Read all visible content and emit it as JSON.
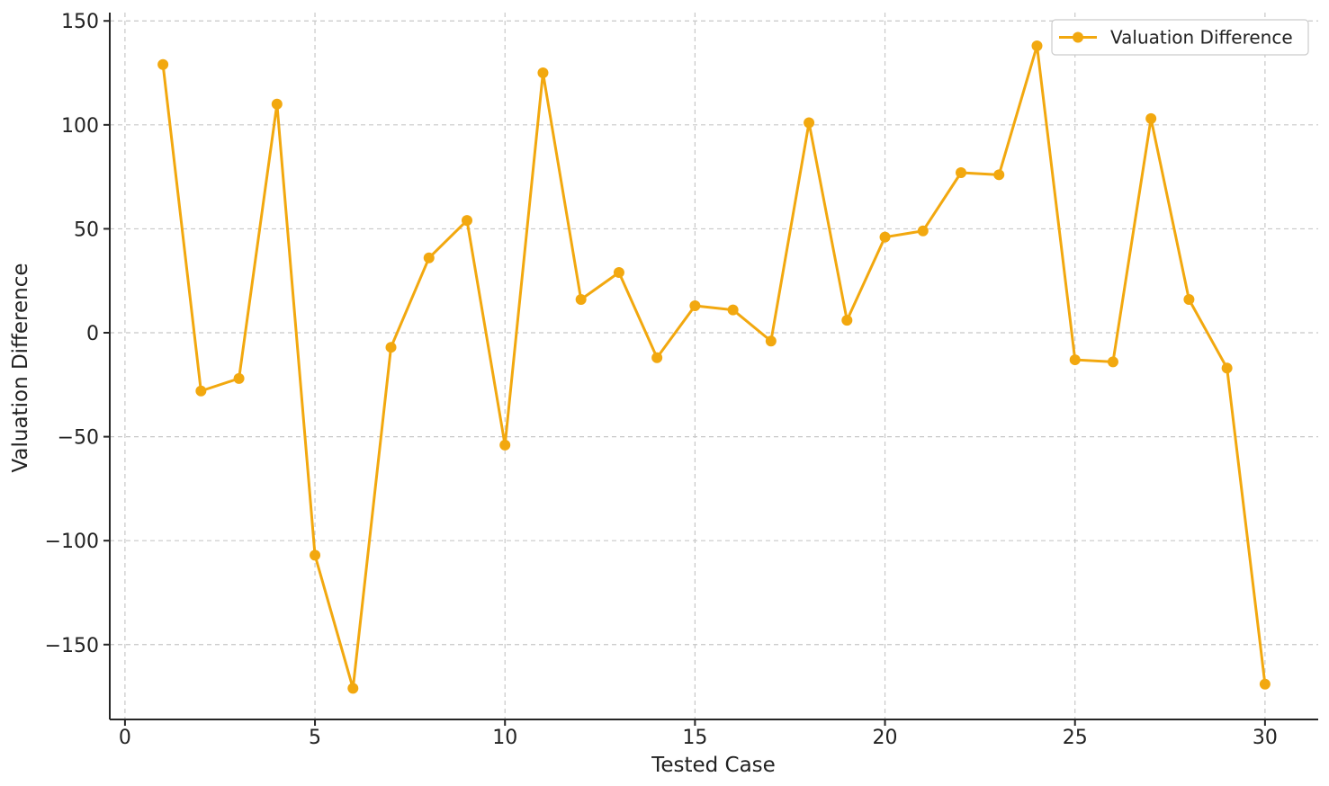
{
  "chart_data": {
    "type": "line",
    "title": "",
    "xlabel": "Tested Case",
    "ylabel": "Valuation Difference",
    "xlim": [
      -0.4,
      31.4
    ],
    "ylim": [
      -186,
      154
    ],
    "xticks": [
      0,
      5,
      10,
      15,
      20,
      25,
      30
    ],
    "yticks": [
      -150,
      -100,
      -50,
      0,
      50,
      100,
      150
    ],
    "ytick_labels": [
      "−150",
      "−100",
      "−50",
      "0",
      "50",
      "100",
      "150"
    ],
    "grid": true,
    "legend_position": "top-right",
    "series": [
      {
        "name": "Valuation Difference",
        "color": "#F2A80F",
        "marker": "circle",
        "x": [
          1,
          2,
          3,
          4,
          5,
          6,
          7,
          8,
          9,
          10,
          11,
          12,
          13,
          14,
          15,
          16,
          17,
          18,
          19,
          20,
          21,
          22,
          23,
          24,
          25,
          26,
          27,
          28,
          29,
          30
        ],
        "y": [
          129,
          -28,
          -22,
          110,
          -107,
          -171,
          -7,
          36,
          54,
          -54,
          125,
          16,
          29,
          -12,
          13,
          11,
          -4,
          101,
          6,
          46,
          49,
          77,
          76,
          138,
          -13,
          -14,
          103,
          16,
          -17,
          -169
        ]
      }
    ]
  }
}
